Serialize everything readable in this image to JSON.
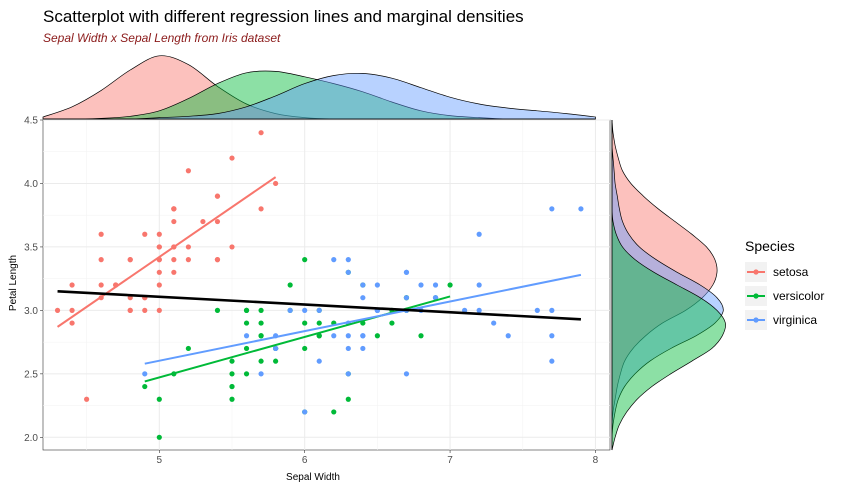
{
  "chart_data": {
    "type": "scatter",
    "title": "Scatterplot with different  regression lines and marginal densities",
    "subtitle": "Sepal Width x Sepal Length from Iris dataset",
    "xlabel": "Sepal Width",
    "ylabel": "Petal Length",
    "xlim": [
      4.2,
      8.1
    ],
    "ylim": [
      1.9,
      4.5
    ],
    "x_ticks": [
      5,
      6,
      7,
      8
    ],
    "y_ticks": [
      2.0,
      2.5,
      3.0,
      3.5,
      4.0,
      4.5
    ],
    "x_tick_labels": [
      "5",
      "6",
      "7",
      "8"
    ],
    "y_tick_labels": [
      "2.0",
      "2.5",
      "3.0",
      "3.5",
      "4.0",
      "4.5"
    ],
    "grid": true,
    "legend": {
      "title": "Species",
      "position": "right",
      "entries": [
        "setosa",
        "versicolor",
        "virginica"
      ]
    },
    "colors": {
      "setosa": "#f8766d",
      "versicolor": "#00ba38",
      "virginica": "#619cff",
      "overall_line": "#000000",
      "grid": "#ebebeb"
    },
    "series": [
      {
        "name": "setosa",
        "points": [
          [
            5.1,
            3.5
          ],
          [
            4.9,
            3.0
          ],
          [
            4.7,
            3.2
          ],
          [
            4.6,
            3.1
          ],
          [
            5.0,
            3.6
          ],
          [
            5.4,
            3.9
          ],
          [
            4.6,
            3.4
          ],
          [
            5.0,
            3.4
          ],
          [
            4.4,
            2.9
          ],
          [
            4.9,
            3.1
          ],
          [
            5.4,
            3.7
          ],
          [
            4.8,
            3.4
          ],
          [
            4.8,
            3.0
          ],
          [
            4.3,
            3.0
          ],
          [
            5.8,
            4.0
          ],
          [
            5.7,
            4.4
          ],
          [
            5.4,
            3.9
          ],
          [
            5.1,
            3.5
          ],
          [
            5.7,
            3.8
          ],
          [
            5.1,
            3.8
          ],
          [
            5.4,
            3.4
          ],
          [
            5.1,
            3.7
          ],
          [
            4.6,
            3.6
          ],
          [
            5.1,
            3.3
          ],
          [
            4.8,
            3.4
          ],
          [
            5.0,
            3.0
          ],
          [
            5.0,
            3.4
          ],
          [
            5.2,
            3.5
          ],
          [
            5.2,
            3.4
          ],
          [
            4.7,
            3.2
          ],
          [
            4.8,
            3.1
          ],
          [
            5.4,
            3.4
          ],
          [
            5.2,
            4.1
          ],
          [
            5.5,
            4.2
          ],
          [
            4.9,
            3.1
          ],
          [
            5.0,
            3.2
          ],
          [
            5.5,
            3.5
          ],
          [
            4.9,
            3.6
          ],
          [
            4.4,
            3.0
          ],
          [
            5.1,
            3.4
          ],
          [
            5.0,
            3.5
          ],
          [
            4.5,
            2.3
          ],
          [
            4.4,
            3.2
          ],
          [
            5.0,
            3.5
          ],
          [
            5.1,
            3.8
          ],
          [
            4.8,
            3.0
          ],
          [
            5.1,
            3.8
          ],
          [
            4.6,
            3.2
          ],
          [
            5.3,
            3.7
          ],
          [
            5.0,
            3.3
          ]
        ],
        "regression": [
          [
            4.3,
            2.87
          ],
          [
            5.8,
            4.05
          ]
        ]
      },
      {
        "name": "versicolor",
        "points": [
          [
            7.0,
            3.2
          ],
          [
            6.4,
            3.2
          ],
          [
            6.9,
            3.1
          ],
          [
            5.5,
            2.3
          ],
          [
            6.5,
            2.8
          ],
          [
            5.7,
            2.8
          ],
          [
            6.3,
            3.3
          ],
          [
            4.9,
            2.4
          ],
          [
            6.6,
            2.9
          ],
          [
            5.2,
            2.7
          ],
          [
            5.0,
            2.0
          ],
          [
            5.9,
            3.0
          ],
          [
            6.0,
            2.2
          ],
          [
            6.1,
            2.9
          ],
          [
            5.6,
            2.9
          ],
          [
            6.7,
            3.1
          ],
          [
            5.6,
            3.0
          ],
          [
            5.8,
            2.7
          ],
          [
            6.2,
            2.2
          ],
          [
            5.6,
            2.5
          ],
          [
            5.9,
            3.2
          ],
          [
            6.1,
            2.8
          ],
          [
            6.3,
            2.5
          ],
          [
            6.1,
            2.8
          ],
          [
            6.4,
            2.9
          ],
          [
            6.6,
            3.0
          ],
          [
            6.8,
            2.8
          ],
          [
            6.7,
            3.0
          ],
          [
            6.0,
            2.9
          ],
          [
            5.7,
            2.6
          ],
          [
            5.5,
            2.4
          ],
          [
            5.5,
            2.4
          ],
          [
            5.8,
            2.7
          ],
          [
            6.0,
            2.7
          ],
          [
            5.4,
            3.0
          ],
          [
            6.0,
            3.4
          ],
          [
            6.7,
            3.1
          ],
          [
            6.3,
            2.3
          ],
          [
            5.6,
            3.0
          ],
          [
            5.5,
            2.5
          ],
          [
            5.5,
            2.6
          ],
          [
            6.1,
            3.0
          ],
          [
            5.8,
            2.6
          ],
          [
            5.0,
            2.3
          ],
          [
            5.6,
            2.7
          ],
          [
            5.7,
            3.0
          ],
          [
            5.7,
            2.9
          ],
          [
            6.2,
            2.9
          ],
          [
            5.1,
            2.5
          ],
          [
            5.7,
            2.8
          ]
        ],
        "regression": [
          [
            4.9,
            2.44
          ],
          [
            7.0,
            3.11
          ]
        ]
      },
      {
        "name": "virginica",
        "points": [
          [
            6.3,
            3.3
          ],
          [
            5.8,
            2.7
          ],
          [
            7.1,
            3.0
          ],
          [
            6.3,
            2.9
          ],
          [
            6.5,
            3.0
          ],
          [
            7.6,
            3.0
          ],
          [
            4.9,
            2.5
          ],
          [
            7.3,
            2.9
          ],
          [
            6.7,
            2.5
          ],
          [
            7.2,
            3.6
          ],
          [
            6.5,
            3.2
          ],
          [
            6.4,
            2.7
          ],
          [
            6.8,
            3.0
          ],
          [
            5.7,
            2.5
          ],
          [
            5.8,
            2.8
          ],
          [
            6.4,
            3.2
          ],
          [
            6.5,
            3.0
          ],
          [
            7.7,
            3.8
          ],
          [
            7.7,
            2.6
          ],
          [
            6.0,
            2.2
          ],
          [
            6.9,
            3.2
          ],
          [
            5.6,
            2.8
          ],
          [
            7.7,
            2.8
          ],
          [
            6.3,
            2.7
          ],
          [
            6.7,
            3.3
          ],
          [
            7.2,
            3.2
          ],
          [
            6.2,
            2.8
          ],
          [
            6.1,
            3.0
          ],
          [
            6.4,
            2.8
          ],
          [
            7.2,
            3.0
          ],
          [
            7.4,
            2.8
          ],
          [
            7.9,
            3.8
          ],
          [
            6.4,
            2.8
          ],
          [
            6.3,
            2.8
          ],
          [
            6.1,
            2.6
          ],
          [
            7.7,
            3.0
          ],
          [
            6.3,
            3.4
          ],
          [
            6.4,
            3.1
          ],
          [
            6.0,
            3.0
          ],
          [
            6.9,
            3.1
          ],
          [
            6.7,
            3.1
          ],
          [
            6.9,
            3.1
          ],
          [
            5.8,
            2.7
          ],
          [
            6.8,
            3.2
          ],
          [
            6.7,
            3.3
          ],
          [
            6.7,
            3.0
          ],
          [
            6.3,
            2.5
          ],
          [
            6.5,
            3.0
          ],
          [
            6.2,
            3.4
          ],
          [
            5.9,
            3.0
          ]
        ],
        "regression": [
          [
            4.9,
            2.58
          ],
          [
            7.9,
            3.28
          ]
        ]
      }
    ],
    "overall_regression": [
      [
        4.3,
        3.15
      ],
      [
        7.9,
        2.93
      ]
    ],
    "marginal_x_density": {
      "x": [
        4.2,
        4.4,
        4.6,
        4.8,
        5.0,
        5.2,
        5.4,
        5.6,
        5.8,
        6.0,
        6.2,
        6.4,
        6.6,
        6.8,
        7.0,
        7.2,
        7.4,
        7.6,
        7.8,
        8.0
      ],
      "setosa": [
        0.03,
        0.18,
        0.42,
        0.72,
        0.93,
        0.8,
        0.48,
        0.22,
        0.08,
        0.02,
        0,
        0,
        0,
        0,
        0,
        0,
        0,
        0,
        0,
        0
      ],
      "versicolor": [
        0,
        0,
        0.01,
        0.04,
        0.12,
        0.3,
        0.52,
        0.68,
        0.7,
        0.62,
        0.52,
        0.4,
        0.25,
        0.12,
        0.05,
        0.02,
        0,
        0,
        0,
        0
      ],
      "virginica": [
        0,
        0,
        0,
        0,
        0.02,
        0.04,
        0.08,
        0.18,
        0.34,
        0.52,
        0.64,
        0.67,
        0.6,
        0.46,
        0.32,
        0.22,
        0.16,
        0.12,
        0.08,
        0.03
      ]
    },
    "marginal_y_density": {
      "y": [
        1.9,
        2.0,
        2.1,
        2.2,
        2.3,
        2.4,
        2.5,
        2.6,
        2.7,
        2.8,
        2.9,
        3.0,
        3.1,
        3.2,
        3.3,
        3.4,
        3.5,
        3.6,
        3.7,
        3.8,
        3.9,
        4.0,
        4.1,
        4.2,
        4.3,
        4.4,
        4.5
      ],
      "setosa": [
        0,
        0,
        0,
        0.01,
        0.03,
        0.05,
        0.08,
        0.12,
        0.2,
        0.32,
        0.48,
        0.7,
        0.86,
        0.96,
        1.0,
        0.98,
        0.9,
        0.76,
        0.6,
        0.44,
        0.3,
        0.18,
        0.1,
        0.06,
        0.03,
        0.01,
        0
      ],
      "versicolor": [
        0,
        0.03,
        0.07,
        0.14,
        0.24,
        0.38,
        0.56,
        0.76,
        0.95,
        1.05,
        1.08,
        1.0,
        0.84,
        0.62,
        0.4,
        0.22,
        0.1,
        0.04,
        0.01,
        0,
        0,
        0,
        0,
        0,
        0,
        0,
        0
      ],
      "virginica": [
        0,
        0,
        0.01,
        0.03,
        0.06,
        0.12,
        0.22,
        0.36,
        0.56,
        0.8,
        0.98,
        1.06,
        1.0,
        0.84,
        0.62,
        0.42,
        0.26,
        0.16,
        0.1,
        0.07,
        0.05,
        0.03,
        0.02,
        0.01,
        0,
        0,
        0
      ]
    }
  }
}
